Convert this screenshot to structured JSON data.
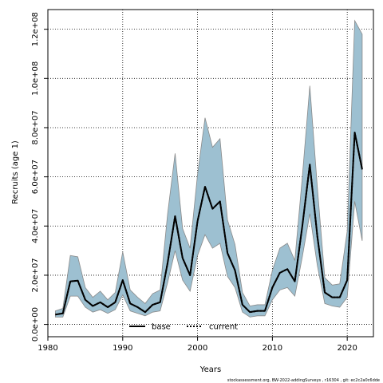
{
  "chart_data": {
    "type": "line",
    "xlabel": "Years",
    "ylabel": "Recruits (age 1)",
    "xlim": [
      1980,
      2023.5
    ],
    "ylim": [
      -5000000,
      128000000
    ],
    "x_ticks": [
      1980,
      1990,
      2000,
      2010,
      2020
    ],
    "x_tick_labels": [
      "1980",
      "1990",
      "2000",
      "2010",
      "2020"
    ],
    "y_ticks": [
      0,
      20000000,
      40000000,
      60000000,
      80000000,
      100000000,
      120000000
    ],
    "y_tick_labels": [
      "0.0e+00",
      "2.0e+07",
      "4.0e+07",
      "6.0e+07",
      "8.0e+07",
      "1.0e+08",
      "1.2e+08"
    ],
    "grid": true,
    "legend_position": "bottom-center",
    "colors": {
      "band": "#9dc0d1",
      "band_edge": "#8a8a8a",
      "line": "#000000"
    },
    "series": [
      {
        "name": "base",
        "style": "solid",
        "x": [
          1981,
          1982,
          1983,
          1984,
          1985,
          1986,
          1987,
          1988,
          1989,
          1990,
          1991,
          1992,
          1993,
          1994,
          1995,
          1996,
          1997,
          1998,
          1999,
          2000,
          2001,
          2002,
          2003,
          2004,
          2005,
          2006,
          2007,
          2008,
          2009,
          2010,
          2011,
          2012,
          2013,
          2014,
          2015,
          2016,
          2017,
          2018,
          2019,
          2020,
          2021,
          2022
        ],
        "y": [
          4000000,
          4500000,
          17500000,
          17800000,
          10000000,
          7500000,
          9000000,
          7000000,
          9000000,
          18000000,
          8500000,
          7000000,
          5000000,
          8000000,
          9000000,
          25000000,
          44000000,
          27000000,
          20000000,
          42000000,
          56000000,
          47000000,
          50000000,
          29000000,
          22000000,
          8000000,
          5000000,
          5500000,
          5500000,
          15000000,
          21000000,
          22500000,
          17500000,
          40000000,
          65000000,
          36000000,
          13000000,
          11000000,
          11000000,
          18000000,
          78000000,
          63000000
        ]
      },
      {
        "name": "current",
        "style": "dotted",
        "x": [
          1981,
          1982,
          1983,
          1984,
          1985,
          1986,
          1987,
          1988,
          1989,
          1990,
          1991,
          1992,
          1993,
          1994,
          1995,
          1996,
          1997,
          1998,
          1999,
          2000,
          2001,
          2002,
          2003,
          2004,
          2005,
          2006,
          2007,
          2008,
          2009,
          2010,
          2011,
          2012,
          2013,
          2014,
          2015,
          2016,
          2017,
          2018,
          2019,
          2020,
          2021,
          2022
        ],
        "y": [
          4000000,
          4500000,
          17500000,
          17800000,
          10000000,
          7500000,
          9000000,
          7000000,
          9000000,
          18000000,
          8500000,
          7000000,
          5000000,
          8000000,
          9000000,
          25000000,
          44000000,
          27000000,
          20000000,
          42000000,
          56000000,
          47000000,
          50000000,
          29000000,
          22000000,
          8000000,
          5000000,
          5500000,
          5500000,
          15000000,
          21000000,
          22500000,
          17500000,
          40000000,
          65000000,
          36000000,
          13000000,
          11000000,
          11000000,
          18000000,
          78000000,
          63000000
        ]
      }
    ],
    "interval": {
      "x": [
        1981,
        1982,
        1983,
        1984,
        1985,
        1986,
        1987,
        1988,
        1989,
        1990,
        1991,
        1992,
        1993,
        1994,
        1995,
        1996,
        1997,
        1998,
        1999,
        2000,
        2001,
        2002,
        2003,
        2004,
        2005,
        2006,
        2007,
        2008,
        2009,
        2010,
        2011,
        2012,
        2013,
        2014,
        2015,
        2016,
        2017,
        2018,
        2019,
        2020,
        2021,
        2022
      ],
      "upper": [
        5500000,
        6500000,
        28000000,
        27500000,
        15000000,
        11000000,
        13500000,
        10000000,
        13000000,
        29500000,
        14000000,
        11000000,
        8500000,
        12500000,
        14000000,
        45000000,
        69500000,
        39000000,
        31000000,
        61000000,
        84000000,
        72000000,
        75500000,
        42500000,
        32500000,
        13000000,
        7500000,
        8000000,
        8000000,
        22000000,
        31000000,
        33000000,
        26000000,
        60000000,
        97000000,
        56000000,
        19000000,
        16000000,
        16500000,
        38000000,
        123500000,
        118000000
      ],
      "lower": [
        3000000,
        3000000,
        11500000,
        11500000,
        7000000,
        5000000,
        6000000,
        4500000,
        6000000,
        12000000,
        5500000,
        4500000,
        3500000,
        5000000,
        5500000,
        17000000,
        30000000,
        18000000,
        13500000,
        28000000,
        36500000,
        31000000,
        33000000,
        19500000,
        15000000,
        5000000,
        3000000,
        3500000,
        3500000,
        10000000,
        14000000,
        15000000,
        11500000,
        27500000,
        45000000,
        24000000,
        8500000,
        7500000,
        7000000,
        11000000,
        50000000,
        34000000
      ]
    }
  },
  "footer_text": "stockassessment.org,  BW-2022-addingSurveys ,  r16304 ,  git:  ec2c2a0c6dde"
}
